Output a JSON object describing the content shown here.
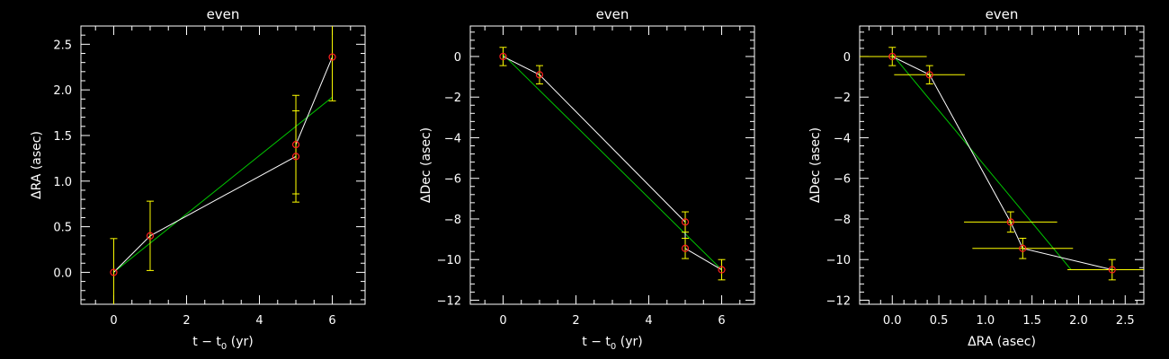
{
  "chart_data": [
    {
      "type": "scatter",
      "title": "even",
      "xlabel": "t − t₀ (yr)",
      "ylabel": "ΔRA (asec)",
      "xlim": [
        -0.9,
        6.9
      ],
      "ylim": [
        -0.35,
        2.7
      ],
      "xticks": [
        0,
        2,
        4,
        6
      ],
      "yticks": [
        0.0,
        0.5,
        1.0,
        1.5,
        2.0,
        2.5
      ],
      "ytick_labels": [
        "0.0",
        "0.5",
        "1.0",
        "1.5",
        "2.0",
        "2.5"
      ],
      "series": [
        {
          "points": [
            {
              "x": 0,
              "y": 0.0,
              "yerr": 0.37
            },
            {
              "x": 1,
              "y": 0.4,
              "yerr": 0.38
            },
            {
              "x": 5,
              "y": 1.27,
              "yerr": 0.5
            },
            {
              "x": 5,
              "y": 1.4,
              "yerr": 0.54
            },
            {
              "x": 6,
              "y": 2.36,
              "yerr": 0.48
            }
          ],
          "path_order": [
            0,
            1,
            2,
            3,
            4
          ]
        }
      ],
      "fit_line": [
        [
          0,
          0.0
        ],
        [
          6,
          1.92
        ]
      ]
    },
    {
      "type": "scatter",
      "title": "even",
      "xlabel": "t − t₀ (yr)",
      "ylabel": "ΔDec (asec)",
      "xlim": [
        -0.9,
        6.9
      ],
      "ylim": [
        -12.2,
        1.5
      ],
      "xticks": [
        0,
        2,
        4,
        6
      ],
      "yticks": [
        0,
        -2,
        -4,
        -6,
        -8,
        -10,
        -12
      ],
      "ytick_labels": [
        "0",
        "−2",
        "−4",
        "−6",
        "−8",
        "−10",
        "−12"
      ],
      "series": [
        {
          "points": [
            {
              "x": 0,
              "y": 0.0,
              "yerr": 0.45
            },
            {
              "x": 1,
              "y": -0.9,
              "yerr": 0.45
            },
            {
              "x": 5,
              "y": -8.15,
              "yerr": 0.5
            },
            {
              "x": 5,
              "y": -9.45,
              "yerr": 0.5
            },
            {
              "x": 6,
              "y": -10.5,
              "yerr": 0.5
            }
          ],
          "path_order": [
            0,
            1,
            2,
            3,
            4
          ]
        }
      ],
      "fit_line": [
        [
          0,
          0.1
        ],
        [
          6,
          -10.5
        ]
      ]
    },
    {
      "type": "scatter",
      "title": "even",
      "xlabel": "ΔRA (asec)",
      "ylabel": "ΔDec (asec)",
      "xlim": [
        -0.35,
        2.7
      ],
      "ylim": [
        -12.2,
        1.5
      ],
      "xticks": [
        0.0,
        0.5,
        1.0,
        1.5,
        2.0,
        2.5
      ],
      "xtick_labels": [
        "0.0",
        "0.5",
        "1.0",
        "1.5",
        "2.0",
        "2.5"
      ],
      "yticks": [
        0,
        -2,
        -4,
        -6,
        -8,
        -10,
        -12
      ],
      "ytick_labels": [
        "0",
        "−2",
        "−4",
        "−6",
        "−8",
        "−10",
        "−12"
      ],
      "series": [
        {
          "points": [
            {
              "x": 0.0,
              "y": 0.0,
              "xerr": 0.37,
              "yerr": 0.45
            },
            {
              "x": 0.4,
              "y": -0.9,
              "xerr": 0.38,
              "yerr": 0.45
            },
            {
              "x": 1.27,
              "y": -8.15,
              "xerr": 0.5,
              "yerr": 0.5
            },
            {
              "x": 1.4,
              "y": -9.45,
              "xerr": 0.54,
              "yerr": 0.5
            },
            {
              "x": 2.36,
              "y": -10.5,
              "xerr": 0.48,
              "yerr": 0.5
            }
          ],
          "path_order": [
            0,
            1,
            2,
            3,
            4
          ]
        }
      ],
      "fit_line": [
        [
          0.0,
          0.1
        ],
        [
          1.92,
          -10.5
        ]
      ]
    }
  ],
  "colors": {
    "background": "#000000",
    "axes": "#ffffff",
    "text": "#ffffff",
    "path_line": "#ffffff",
    "fit_line": "#00c800",
    "error_bar": "#ffff00",
    "marker": "#ff2020"
  }
}
